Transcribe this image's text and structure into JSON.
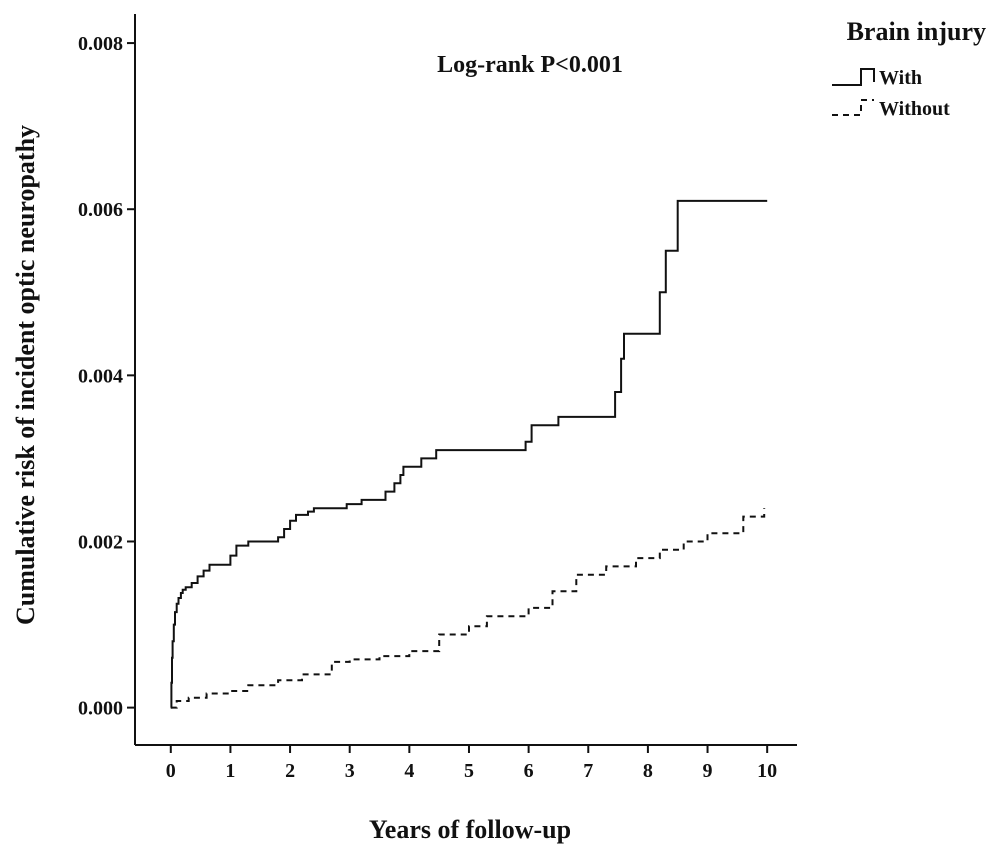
{
  "chart_data": {
    "type": "line",
    "title": "",
    "annotation": "Log-rank P<0.001",
    "xlabel": "Years of follow-up",
    "ylabel": "Cumulative risk of incident optic neuropathy",
    "xlim": [
      -0.6,
      10.5
    ],
    "ylim": [
      -0.00045,
      0.00835
    ],
    "xticks": [
      0,
      1,
      2,
      3,
      4,
      5,
      6,
      7,
      8,
      9,
      10
    ],
    "xtick_labels": [
      "0",
      "1",
      "2",
      "3",
      "4",
      "5",
      "6",
      "7",
      "8",
      "9",
      "10"
    ],
    "yticks": [
      0,
      0.002,
      0.004,
      0.006,
      0.008
    ],
    "ytick_labels": [
      "0.000",
      "0.002",
      "0.004",
      "0.006",
      "0.008"
    ],
    "grid": false,
    "legend": {
      "title": "Brain injury",
      "placement": "top-right"
    },
    "series": [
      {
        "name": "With",
        "style": "solid",
        "color": "#111111",
        "step": true,
        "x": [
          0,
          0.01,
          0.02,
          0.03,
          0.05,
          0.07,
          0.1,
          0.13,
          0.17,
          0.2,
          0.25,
          0.35,
          0.45,
          0.55,
          0.65,
          1.0,
          1.1,
          1.3,
          1.8,
          1.9,
          2.0,
          2.1,
          2.3,
          2.4,
          2.95,
          3.2,
          3.6,
          3.75,
          3.85,
          3.9,
          4.2,
          4.45,
          5.0,
          5.5,
          5.95,
          6.05,
          6.5,
          7.0,
          7.45,
          7.55,
          7.6,
          8.15,
          8.2,
          8.3,
          8.5,
          10.0
        ],
        "y": [
          0,
          0.0003,
          0.0006,
          0.0008,
          0.001,
          0.00115,
          0.00125,
          0.00132,
          0.00138,
          0.00142,
          0.00145,
          0.0015,
          0.00158,
          0.00165,
          0.00172,
          0.00183,
          0.00195,
          0.002,
          0.00205,
          0.00215,
          0.00225,
          0.00232,
          0.00236,
          0.0024,
          0.00245,
          0.0025,
          0.0026,
          0.0027,
          0.0028,
          0.0029,
          0.003,
          0.0031,
          0.0031,
          0.0031,
          0.0032,
          0.0034,
          0.0035,
          0.0035,
          0.0038,
          0.0042,
          0.0045,
          0.0045,
          0.005,
          0.0055,
          0.0061,
          0.0061
        ]
      },
      {
        "name": "Without",
        "style": "dashed",
        "color": "#111111",
        "step": true,
        "x": [
          0,
          0.1,
          0.3,
          0.6,
          1.0,
          1.3,
          1.8,
          2.2,
          2.7,
          3.0,
          3.5,
          4.0,
          4.5,
          5.0,
          5.3,
          6.0,
          6.4,
          6.8,
          7.3,
          7.8,
          8.2,
          8.6,
          9.0,
          9.6,
          9.95
        ],
        "y": [
          0,
          8e-05,
          0.00012,
          0.00017,
          0.0002,
          0.00027,
          0.00033,
          0.0004,
          0.00055,
          0.00058,
          0.00062,
          0.00068,
          0.00088,
          0.00098,
          0.0011,
          0.0012,
          0.0014,
          0.0016,
          0.0017,
          0.0018,
          0.0019,
          0.002,
          0.0021,
          0.0023,
          0.0024
        ]
      }
    ]
  }
}
